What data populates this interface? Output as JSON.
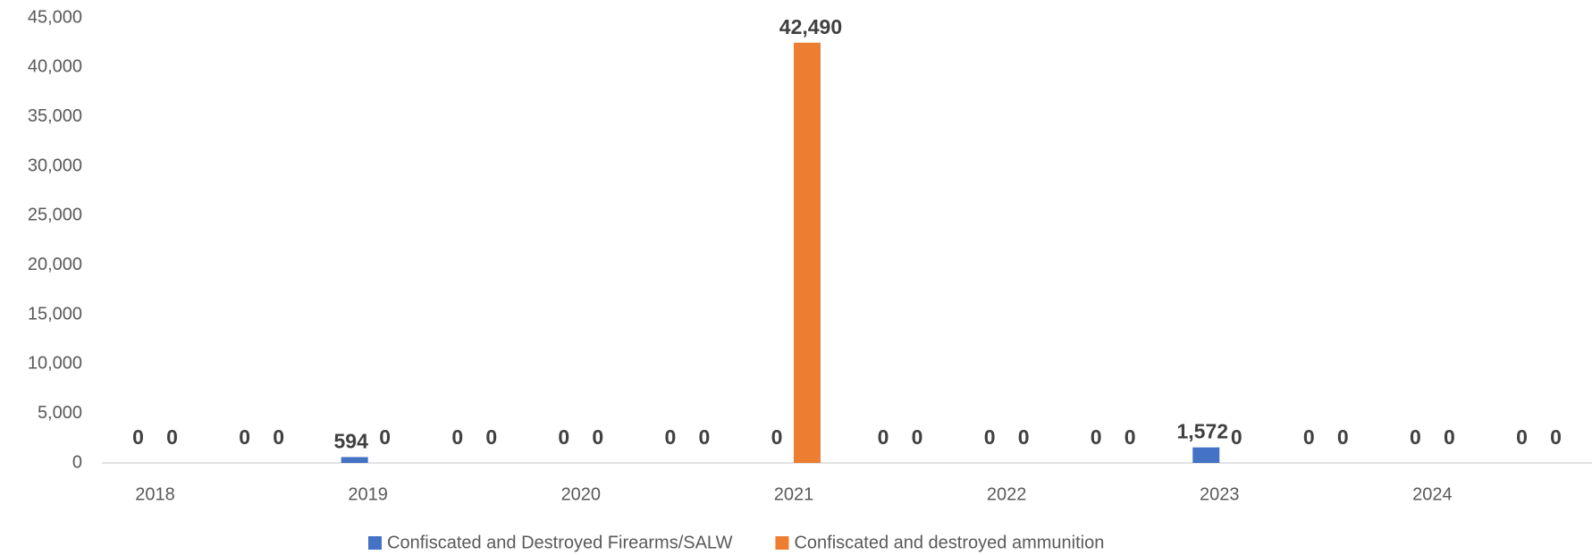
{
  "chart_data": {
    "type": "bar",
    "categories": [
      "2018",
      null,
      "2019",
      null,
      "2020",
      null,
      "2021",
      null,
      "2022",
      null,
      "2023",
      null,
      "2024",
      null
    ],
    "series": [
      {
        "name": "Confiscated and Destroyed Firearms/SALW",
        "color": "#4472c4",
        "values": [
          0,
          0,
          594,
          0,
          0,
          0,
          0,
          0,
          0,
          0,
          1572,
          0,
          0,
          0
        ],
        "value_labels": [
          "0",
          "0",
          "594",
          "0",
          "0",
          "0",
          "0",
          "0",
          "0",
          "0",
          "1,572",
          "0",
          "0",
          "0"
        ]
      },
      {
        "name": "Confiscated and destroyed ammunition",
        "color": "#ed7d31",
        "values": [
          0,
          0,
          0,
          0,
          0,
          0,
          42490,
          0,
          0,
          0,
          0,
          0,
          0,
          0
        ],
        "value_labels": [
          "0",
          "0",
          "0",
          "0",
          "0",
          "0",
          "42,490",
          "0",
          "0",
          "0",
          "0",
          "0",
          "0",
          "0"
        ]
      }
    ],
    "ylim": [
      0,
      45000
    ],
    "yticks": [
      0,
      {
        "value": 5000,
        "label": "5,000"
      },
      {
        "value": 10000,
        "label": "10,000"
      },
      {
        "value": 15000,
        "label": "15,000"
      },
      {
        "value": 20000,
        "label": "20,000"
      },
      {
        "value": 25000,
        "label": "25,000"
      },
      {
        "value": 30000,
        "label": "30,000"
      },
      {
        "value": 35000,
        "label": "35,000"
      },
      {
        "value": 40000,
        "label": "40,000"
      },
      {
        "value": 45000,
        "label": "45,000"
      }
    ],
    "legend": "bottom"
  }
}
